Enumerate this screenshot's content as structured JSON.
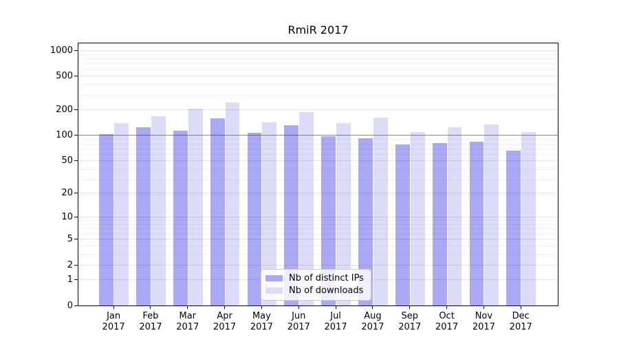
{
  "title": "RmiR 2017",
  "chart_data": {
    "type": "bar",
    "title": "RmiR 2017",
    "categories": [
      "Jan 2017",
      "Feb 2017",
      "Mar 2017",
      "Apr 2017",
      "May 2017",
      "Jun 2017",
      "Jul 2017",
      "Aug 2017",
      "Sep 2017",
      "Oct 2017",
      "Nov 2017",
      "Dec 2017"
    ],
    "series": [
      {
        "name": "Nb of distinct IPs",
        "color": "#a9a9f5",
        "values": [
          103,
          124,
          114,
          160,
          108,
          131,
          97,
          92,
          78,
          81,
          84,
          65
        ]
      },
      {
        "name": "Nb of downloads",
        "color": "#dcdcf8",
        "values": [
          140,
          169,
          207,
          245,
          142,
          188,
          139,
          162,
          109,
          125,
          134,
          109
        ]
      }
    ],
    "xlabel": "",
    "ylabel": "",
    "y_scale": "log1p",
    "ylim": [
      0,
      1220
    ],
    "y_ticks": [
      0,
      1,
      2,
      5,
      10,
      20,
      50,
      100,
      200,
      500,
      1000
    ],
    "y_minor_gridlines": [
      3,
      4,
      6,
      7,
      8,
      9,
      19,
      29,
      39,
      59,
      69,
      79,
      89,
      299,
      399,
      599,
      699,
      799,
      899
    ],
    "emphasis_gridline_value": 100,
    "grid": true,
    "legend_position": "lower center"
  },
  "legend": {
    "items": [
      {
        "label": "Nb of distinct IPs",
        "color": "#a9a9f5"
      },
      {
        "label": "Nb of downloads",
        "color": "#dcdcf8"
      }
    ]
  },
  "colors": {
    "bar_distinct_ips": "#a9a9f5",
    "bar_downloads": "#dcdcf8",
    "grid_major": "rgba(0,0,0,0.10)",
    "grid_minor": "rgba(0,0,0,0.05)",
    "emphasis_line": "rgba(45,45,45,0.48)",
    "spine": "#000000",
    "background": "#ffffff",
    "legend_border": "#cccccc"
  }
}
